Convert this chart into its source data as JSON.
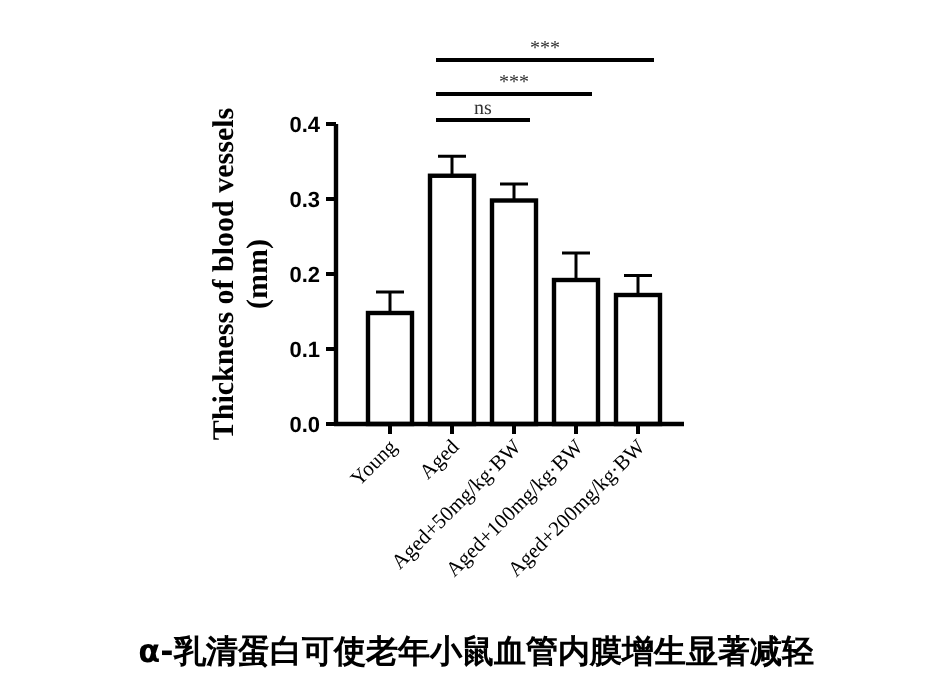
{
  "chart_data": {
    "type": "bar",
    "title": "α-乳清蛋白可使老年小鼠血管内膜增生显著减轻",
    "ylabel": "Thickness of blood vessels\n(mm)",
    "categories": [
      "Young",
      "Aged",
      "Aged+50mg/kg·BW",
      "Aged+100mg/kg·BW",
      "Aged+200mg/kg·BW"
    ],
    "values": [
      0.148,
      0.331,
      0.298,
      0.192,
      0.172
    ],
    "errors": [
      0.028,
      0.026,
      0.022,
      0.036,
      0.026
    ],
    "color": "#ffffff",
    "ylim": [
      0,
      0.4
    ],
    "yticks": [
      {
        "value": 0,
        "label": "0.0"
      },
      {
        "value": 0.1,
        "label": "0.1"
      },
      {
        "value": 0.2,
        "label": "0.2"
      },
      {
        "value": 0.3,
        "label": "0.3"
      },
      {
        "value": 0.4,
        "label": "0.4"
      }
    ],
    "annotations": [
      "ns",
      "***",
      "***"
    ],
    "grid": false
  }
}
